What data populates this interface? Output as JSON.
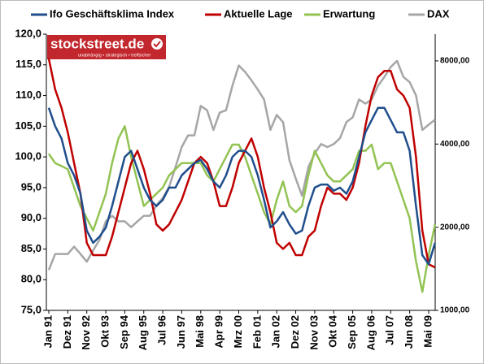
{
  "chart_data": {
    "type": "line",
    "logo": "stockstreet.de",
    "logo_tagline": "unabhängig • strategisch • treffsicher",
    "categories": [
      "Jan 91",
      null,
      null,
      "Dez 91",
      null,
      null,
      "Nov 92",
      null,
      null,
      "Okt 93",
      null,
      null,
      "Sep 94",
      null,
      null,
      "Aug 95",
      null,
      null,
      "Jul 96",
      null,
      null,
      "Jun 97",
      null,
      null,
      "Mai 98",
      null,
      null,
      "Apr 99",
      null,
      null,
      "Mrz 00",
      null,
      null,
      "Feb 01",
      null,
      null,
      "Jan 02",
      null,
      null,
      "Dez 02",
      null,
      null,
      "Nov 03",
      null,
      null,
      "Okt 04",
      null,
      null,
      "Sep 05",
      null,
      null,
      "Aug 06",
      null,
      null,
      "Jul 07",
      null,
      null,
      "Jun 08",
      null,
      null,
      "Mai 09",
      null
    ],
    "series": [
      {
        "name": "Ifo Geschäftsklima Index",
        "color": "#1f4e8c",
        "values": [
          108,
          105,
          103,
          99,
          97,
          94,
          88,
          86,
          87,
          88.5,
          92,
          96,
          100,
          101,
          98,
          95,
          93,
          92,
          93,
          95,
          95,
          97,
          98,
          99,
          99.5,
          98,
          96,
          95,
          97,
          100,
          101,
          101,
          100,
          97,
          93,
          88.5,
          89.5,
          91,
          89,
          87.5,
          88,
          92,
          95,
          95.5,
          95.5,
          94.5,
          95,
          94,
          96,
          100,
          104,
          106,
          108,
          108,
          106,
          104,
          104,
          101,
          92,
          84,
          82.5,
          86
        ]
      },
      {
        "name": "Aktuelle Lage",
        "color": "#c00000",
        "values": [
          116,
          111,
          108,
          104,
          99,
          94,
          86,
          84,
          84,
          84,
          87,
          91,
          95,
          99,
          101,
          98,
          94,
          89,
          88,
          89,
          91,
          93,
          96,
          99,
          100,
          99,
          96,
          92,
          92,
          95,
          99,
          101,
          103,
          100,
          95,
          91,
          86,
          85,
          86,
          84,
          84,
          87,
          88,
          92,
          95,
          94,
          94,
          93,
          95,
          99,
          105,
          110,
          113,
          114,
          114,
          111,
          110,
          108,
          100,
          88,
          82.5,
          82
        ]
      },
      {
        "name": "Erwartung",
        "color": "#92c353",
        "values": [
          100.5,
          99,
          98.5,
          98,
          95,
          92,
          90,
          88,
          91,
          94,
          99,
          103,
          105,
          100,
          96,
          92,
          93,
          94,
          95,
          97,
          98,
          99,
          99,
          99,
          99,
          97,
          96,
          98,
          100,
          102,
          102,
          100,
          97,
          94,
          91,
          89,
          93,
          96,
          92,
          91,
          92,
          97,
          101,
          99,
          97,
          96,
          96,
          97,
          98,
          101,
          101,
          102,
          98,
          99,
          99,
          96,
          93,
          90,
          83,
          78,
          84,
          89
        ]
      },
      {
        "name": "DAX",
        "color": "#a6a6a6",
        "axis": "y2",
        "values": [
          1400,
          1600,
          1600,
          1600,
          1700,
          1600,
          1500,
          1650,
          1800,
          2100,
          2200,
          2100,
          2100,
          2000,
          2100,
          2200,
          2200,
          2400,
          2550,
          2800,
          3300,
          3900,
          4300,
          4300,
          5500,
          5300,
          4500,
          5200,
          5300,
          6500,
          7700,
          7300,
          6800,
          6300,
          5800,
          4500,
          5100,
          4800,
          3500,
          3000,
          2600,
          3300,
          3700,
          4000,
          3900,
          4000,
          4200,
          4800,
          5000,
          5800,
          5600,
          5800,
          6500,
          7000,
          7600,
          8000,
          7000,
          6700,
          6000,
          4500,
          4700,
          4900
        ]
      }
    ],
    "ylim": [
      75,
      120
    ],
    "yticks": [
      {
        "value": 75,
        "label": "75,0"
      },
      {
        "value": 80,
        "label": "80,0"
      },
      {
        "value": 85,
        "label": "85,0"
      },
      {
        "value": 90,
        "label": "90,0"
      },
      {
        "value": 95,
        "label": "95,0"
      },
      {
        "value": 100,
        "label": "100,0"
      },
      {
        "value": 105,
        "label": "105,0"
      },
      {
        "value": 110,
        "label": "110,0"
      },
      {
        "value": 115,
        "label": "115,0"
      },
      {
        "value": 120,
        "label": "120,0"
      }
    ],
    "y2lim": [
      1000,
      10000
    ],
    "y2log": true,
    "y2ticks": [
      {
        "value": 1000,
        "label": "1000,00"
      },
      {
        "value": 2000,
        "label": "2000,00"
      },
      {
        "value": 4000,
        "label": "4000,00"
      },
      {
        "value": 8000,
        "label": "8000,00"
      }
    ],
    "grid": false,
    "legend": "top"
  }
}
